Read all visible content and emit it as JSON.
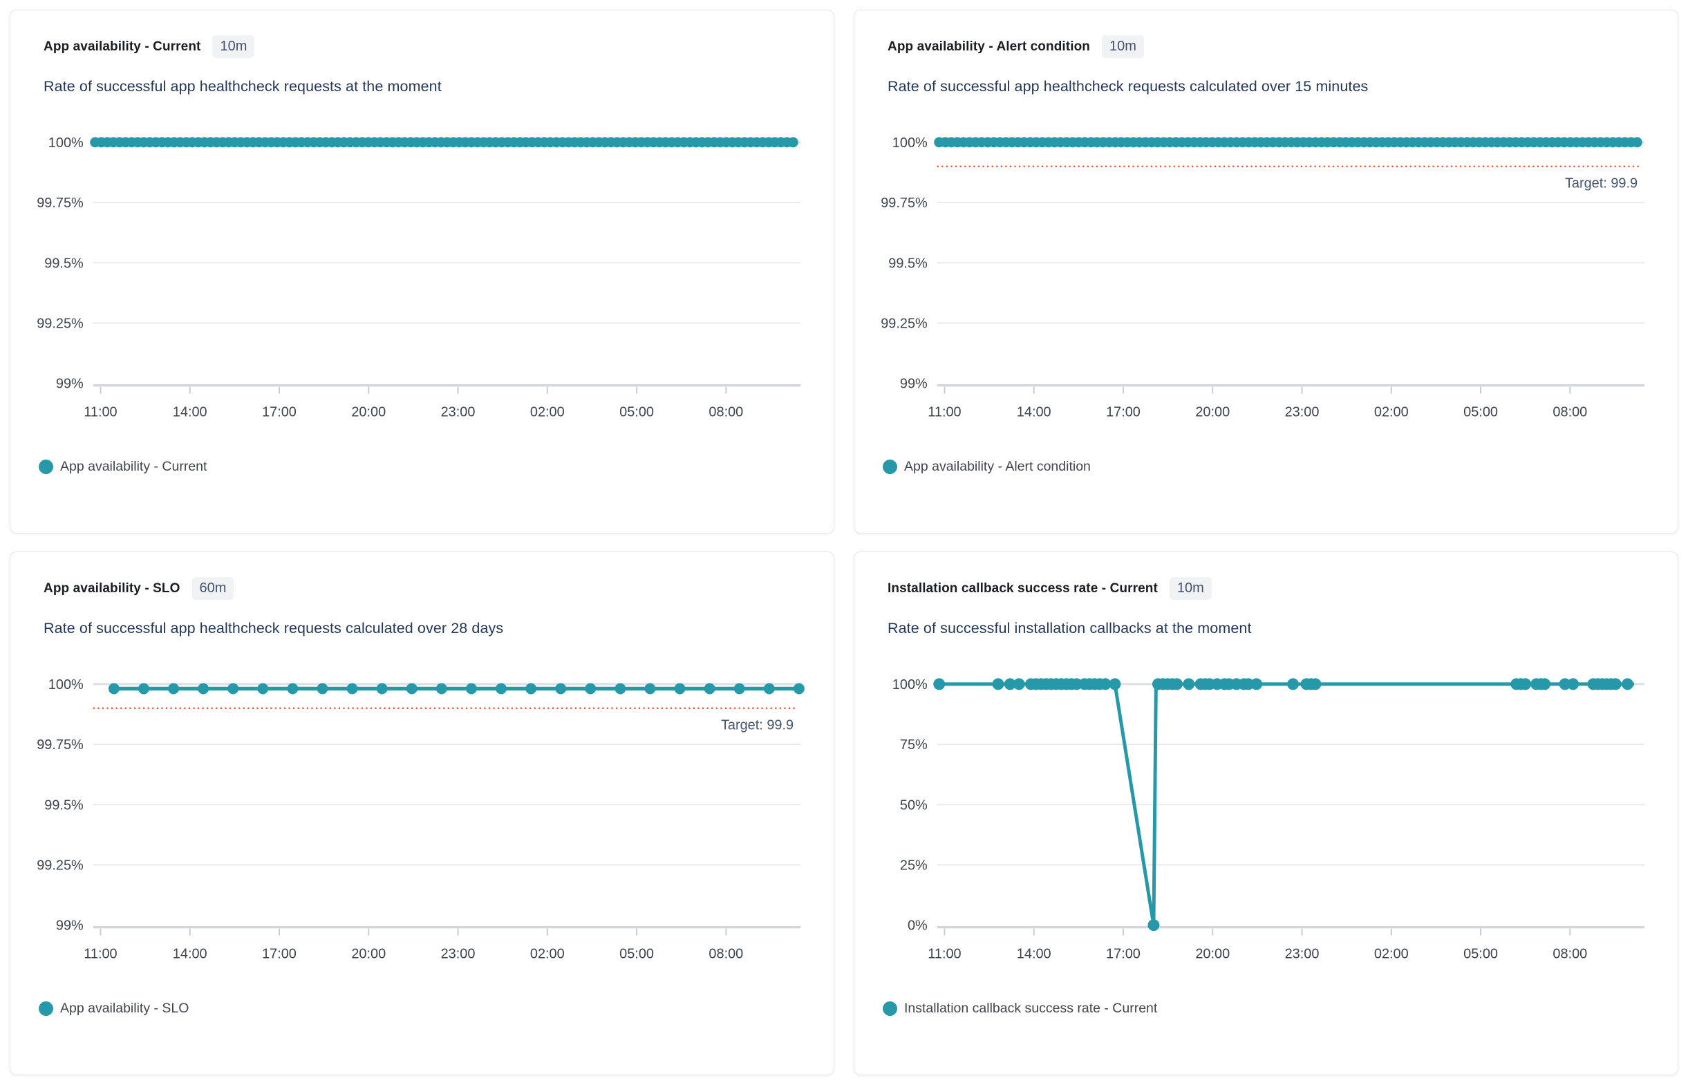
{
  "colors": {
    "teal": "#2599A9",
    "target_red": "#E2472F",
    "grid": "#E9EAEC",
    "grid_strong": "#DDDFE2",
    "axis": "#D4D6DA",
    "tick_text": "#3E434B",
    "slate": "#44546F",
    "subtitle": "#243858",
    "title": "#1A1D21",
    "badge_bg": "#F1F2F4",
    "badge_text": "#42526E"
  },
  "panels": [
    {
      "id": "app-availability-current",
      "title": "App availability - Current",
      "timeframe": "10m",
      "subtitle": "Rate of successful app healthcheck requests at the moment",
      "legend": "App availability - Current"
    },
    {
      "id": "app-availability-alert-condition",
      "title": "App availability - Alert condition",
      "timeframe": "10m",
      "subtitle": "Rate of successful app healthcheck requests calculated over 15 minutes",
      "legend": "App availability - Alert condition"
    },
    {
      "id": "app-availability-slo",
      "title": "App availability - SLO",
      "timeframe": "60m",
      "subtitle": "Rate of successful app healthcheck requests calculated over 28 days",
      "legend": "App availability - SLO"
    },
    {
      "id": "installation-callback-success-rate-current",
      "title": "Installation callback success rate - Current",
      "timeframe": "10m",
      "subtitle": "Rate of successful installation callbacks at the moment",
      "legend": "Installation callback success rate - Current"
    }
  ],
  "chart_data": [
    {
      "panel": "app-availability-current",
      "type": "line",
      "title": "App availability - Current",
      "x_axis": {
        "tick_labels": [
          "11:00",
          "14:00",
          "17:00",
          "20:00",
          "23:00",
          "02:00",
          "05:00",
          "08:00"
        ],
        "first_tick_offset_hours": 0.25,
        "tick_interval_hours": 3,
        "total_hours": 23.75
      },
      "y_axis": {
        "tick_labels": [
          "100%",
          "99.75%",
          "99.5%",
          "99.25%",
          "99%"
        ],
        "tick_values": [
          100,
          99.75,
          99.5,
          99.25,
          99
        ],
        "unit": "%"
      },
      "ylim": [
        99,
        100
      ],
      "grid": true,
      "legend_position": "bottom-left",
      "series": [
        {
          "name": "App availability - Current",
          "style": "dense-band",
          "value": 100,
          "start_hour": 0.07,
          "end_hour": 23.5,
          "sample_interval_minutes": 10
        }
      ]
    },
    {
      "panel": "app-availability-alert-condition",
      "type": "line",
      "title": "App availability - Alert condition",
      "x_axis": {
        "tick_labels": [
          "11:00",
          "14:00",
          "17:00",
          "20:00",
          "23:00",
          "02:00",
          "05:00",
          "08:00"
        ],
        "first_tick_offset_hours": 0.25,
        "tick_interval_hours": 3,
        "total_hours": 23.75
      },
      "y_axis": {
        "tick_labels": [
          "100%",
          "99.75%",
          "99.5%",
          "99.25%",
          "99%"
        ],
        "tick_values": [
          100,
          99.75,
          99.5,
          99.25,
          99
        ],
        "unit": "%"
      },
      "ylim": [
        99,
        100
      ],
      "grid": true,
      "target": {
        "value": 99.9,
        "label": "Target: 99.9"
      },
      "legend_position": "bottom-left",
      "series": [
        {
          "name": "App availability - Alert condition",
          "style": "dense-band",
          "value": 100,
          "start_hour": 0.07,
          "end_hour": 23.6,
          "sample_interval_minutes": 10
        }
      ]
    },
    {
      "panel": "app-availability-slo",
      "type": "line",
      "title": "App availability - SLO",
      "x_axis": {
        "tick_labels": [
          "11:00",
          "14:00",
          "17:00",
          "20:00",
          "23:00",
          "02:00",
          "05:00",
          "08:00"
        ],
        "first_tick_offset_hours": 0.25,
        "tick_interval_hours": 3,
        "total_hours": 23.75
      },
      "y_axis": {
        "tick_labels": [
          "100%",
          "99.75%",
          "99.5%",
          "99.25%",
          "99%"
        ],
        "tick_values": [
          100,
          99.75,
          99.5,
          99.25,
          99
        ],
        "unit": "%"
      },
      "ylim": [
        99,
        100
      ],
      "grid": true,
      "target": {
        "value": 99.9,
        "label": "Target: 99.9"
      },
      "legend_position": "bottom-left",
      "series": [
        {
          "name": "App availability - SLO",
          "style": "hourly-dots",
          "value": 99.981,
          "sample_interval_minutes": 60,
          "marker_hours": [
            0.7,
            1.7,
            2.7,
            3.7,
            4.7,
            5.7,
            6.7,
            7.7,
            8.7,
            9.7,
            10.7,
            11.7,
            12.7,
            13.7,
            14.7,
            15.7,
            16.7,
            17.7,
            18.7,
            19.7,
            20.7,
            21.7,
            22.7,
            23.7
          ]
        }
      ]
    },
    {
      "panel": "installation-callback-success-rate-current",
      "type": "line",
      "title": "Installation callback success rate - Current",
      "x_axis": {
        "tick_labels": [
          "11:00",
          "14:00",
          "17:00",
          "20:00",
          "23:00",
          "02:00",
          "05:00",
          "08:00"
        ],
        "first_tick_offset_hours": 0.25,
        "tick_interval_hours": 3,
        "total_hours": 23.75
      },
      "y_axis": {
        "tick_labels": [
          "100%",
          "75%",
          "50%",
          "25%",
          "0%"
        ],
        "tick_values": [
          100,
          75,
          50,
          25,
          0
        ],
        "unit": "%"
      },
      "ylim": [
        0,
        100
      ],
      "grid": true,
      "legend_position": "bottom-left",
      "annotations": [
        "Dip to 0% at ~18:00, recovery by ~18:10"
      ],
      "series": [
        {
          "name": "Installation callback success rate - Current",
          "style": "line-with-markers",
          "line_points": [
            [
              0.07,
              100
            ],
            [
              5.97,
              100
            ],
            [
              7.27,
              0
            ],
            [
              7.35,
              100
            ],
            [
              23.4,
              100
            ]
          ],
          "markers": [
            [
              0.07,
              100
            ],
            [
              2.05,
              100
            ],
            [
              2.45,
              100
            ],
            [
              2.75,
              100
            ],
            [
              3.15,
              100
            ],
            [
              3.32,
              100
            ],
            [
              3.49,
              100
            ],
            [
              3.66,
              100
            ],
            [
              3.83,
              100
            ],
            [
              4.0,
              100
            ],
            [
              4.17,
              100
            ],
            [
              4.34,
              100
            ],
            [
              4.51,
              100
            ],
            [
              4.68,
              100
            ],
            [
              4.95,
              100
            ],
            [
              5.12,
              100
            ],
            [
              5.29,
              100
            ],
            [
              5.46,
              100
            ],
            [
              5.65,
              100
            ],
            [
              5.97,
              100
            ],
            [
              7.27,
              0
            ],
            [
              7.42,
              100
            ],
            [
              7.58,
              100
            ],
            [
              7.74,
              100
            ],
            [
              7.9,
              100
            ],
            [
              8.05,
              100
            ],
            [
              8.45,
              100
            ],
            [
              8.85,
              100
            ],
            [
              9.0,
              100
            ],
            [
              9.15,
              100
            ],
            [
              9.4,
              100
            ],
            [
              9.65,
              100
            ],
            [
              9.8,
              100
            ],
            [
              10.05,
              100
            ],
            [
              10.3,
              100
            ],
            [
              10.45,
              100
            ],
            [
              10.72,
              100
            ],
            [
              11.95,
              100
            ],
            [
              12.4,
              100
            ],
            [
              12.55,
              100
            ],
            [
              12.7,
              100
            ],
            [
              19.45,
              100
            ],
            [
              19.6,
              100
            ],
            [
              19.75,
              100
            ],
            [
              20.12,
              100
            ],
            [
              20.27,
              100
            ],
            [
              20.4,
              100
            ],
            [
              21.08,
              100
            ],
            [
              21.35,
              100
            ],
            [
              22.03,
              100
            ],
            [
              22.18,
              100
            ],
            [
              22.33,
              100
            ],
            [
              22.48,
              100
            ],
            [
              22.63,
              100
            ],
            [
              22.78,
              100
            ],
            [
              23.18,
              100
            ]
          ]
        }
      ]
    }
  ]
}
